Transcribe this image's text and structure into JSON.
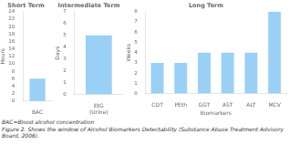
{
  "chart_data": [
    {
      "type": "bar",
      "title": "Short Term",
      "ylabel": "Hours",
      "categories": [
        "BAC"
      ],
      "values": [
        6
      ],
      "ylim": [
        0,
        24
      ],
      "yticks": [
        0,
        2,
        4,
        6,
        8,
        10,
        12,
        14,
        16,
        18,
        20,
        22,
        24
      ],
      "grid": false
    },
    {
      "type": "bar",
      "title": "Intermediate Term",
      "ylabel": "Days",
      "categories": [
        "EtG\n(Urine)"
      ],
      "values": [
        5
      ],
      "ylim": [
        0,
        7
      ],
      "yticks": [
        0,
        1,
        2,
        3,
        4,
        5,
        6,
        7
      ],
      "grid": false
    },
    {
      "type": "bar",
      "title": "Long Term",
      "ylabel": "Weeks",
      "xlabel": "Biomarkers",
      "categories": [
        "CDT",
        "PEth",
        "GGT",
        "AST",
        "ALT",
        "MCV"
      ],
      "values": [
        3,
        3,
        4,
        4,
        4,
        8
      ],
      "ylim": [
        0,
        8
      ],
      "yticks": [
        0,
        1,
        2,
        3,
        4,
        5,
        6,
        7,
        8
      ],
      "grid": false,
      "annotations": [
        "BAC=Blood alcohol concentration",
        "Figure 2. Shows the window of Alcohol Biomarkers Detectability (Substance Abuse Treatment Advisory Board, 2006)."
      ]
    }
  ]
}
